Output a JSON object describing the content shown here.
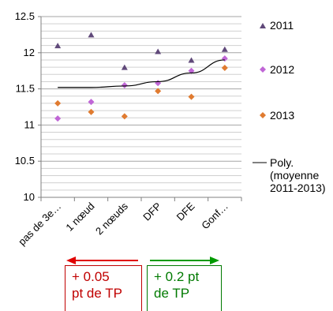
{
  "chart_data": {
    "type": "scatter",
    "categories": [
      "pas de 3e…",
      "1 nœud",
      "2 nœuds",
      "DFP",
      "DFE",
      "Gonf…"
    ],
    "ylim": [
      10,
      12.5
    ],
    "yticks": [
      "10",
      "10.5",
      "11",
      "11.5",
      "12",
      "12.5"
    ],
    "grid": true,
    "legend_position": "right",
    "series": [
      {
        "name": "2011",
        "marker": "triangle",
        "color": "#60497a",
        "values": [
          12.1,
          12.25,
          11.8,
          12.02,
          11.9,
          12.05
        ]
      },
      {
        "name": "2012",
        "marker": "diamond",
        "color": "#c066d6",
        "values": [
          11.09,
          11.32,
          11.55,
          11.58,
          11.75,
          11.92
        ]
      },
      {
        "name": "2013",
        "marker": "diamond",
        "color": "#e07b30",
        "values": [
          11.3,
          11.18,
          11.12,
          11.47,
          11.39,
          11.79
        ]
      },
      {
        "name": "Poly. (moyenne 2011-2013)",
        "type": "line",
        "color": "#000000",
        "values": [
          11.52,
          11.52,
          11.54,
          11.6,
          11.72,
          11.9
        ]
      }
    ]
  },
  "legend": {
    "s2011": "2011",
    "s2012": "2012",
    "s2013": "2013",
    "poly_line1": "Poly.",
    "poly_line2": "(moyenne",
    "poly_line3": "2011-2013)"
  },
  "annotations": {
    "left": {
      "line1": "+ 0.05",
      "line2": "pt de TP",
      "color": "#c00000"
    },
    "right": {
      "line1": "+ 0.2 pt",
      "line2": "de TP",
      "color": "#007a00"
    }
  }
}
